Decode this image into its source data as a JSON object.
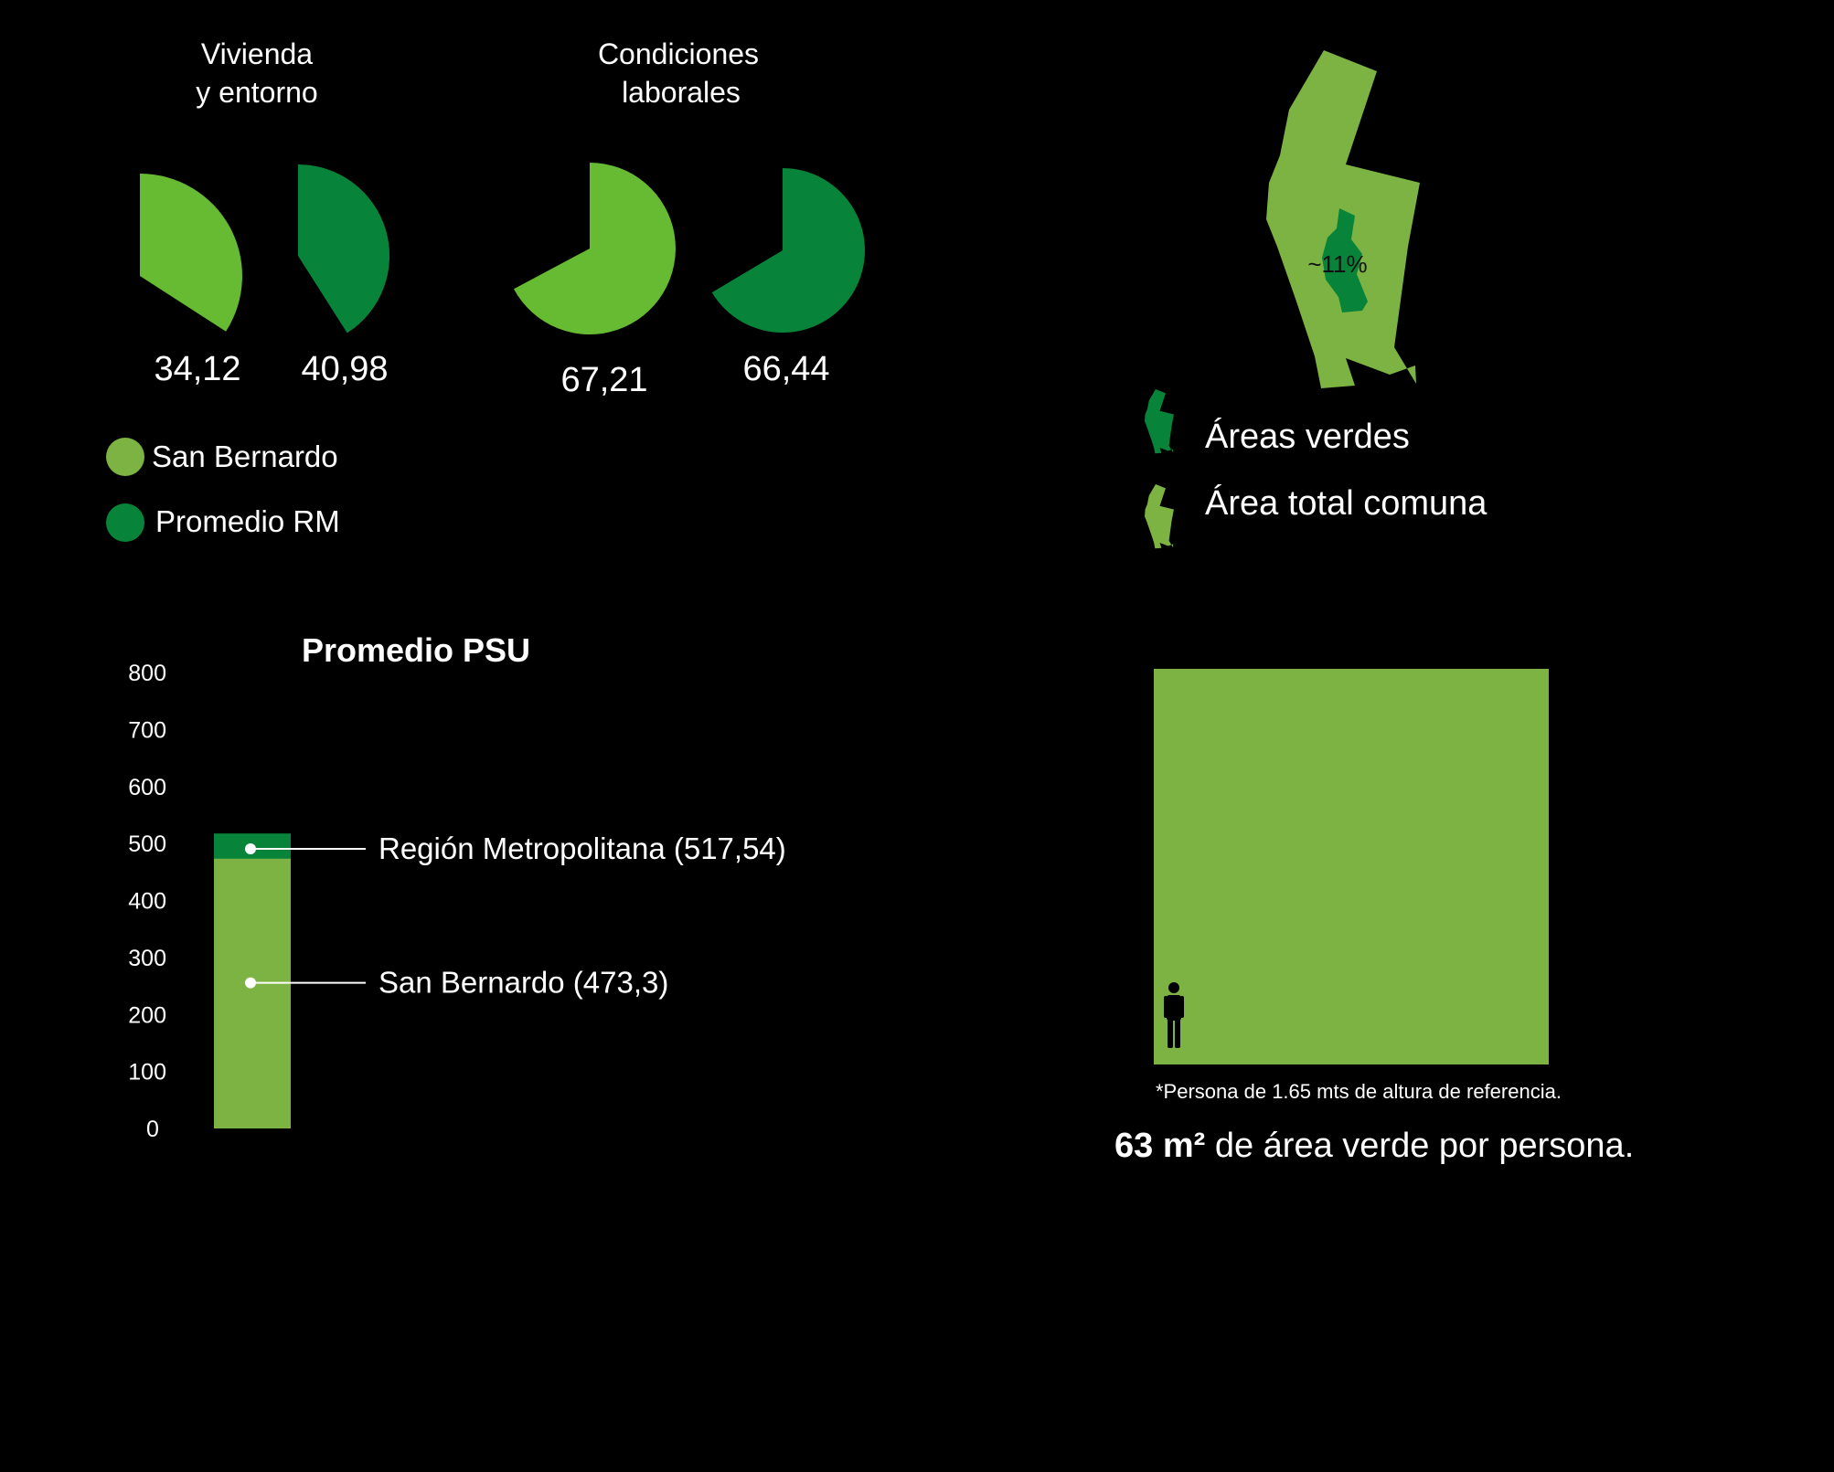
{
  "colors": {
    "background": "#000000",
    "san_bernardo": "#7cb342",
    "san_bernardo_pie": "#66bb33",
    "promedio_rm": "#07843a",
    "text": "#ffffff",
    "percent_text": "#111111"
  },
  "pie_groups": [
    {
      "title_lines": [
        "Vivienda",
        "y entorno"
      ],
      "pies": [
        {
          "series": "San Bernardo",
          "value": 34.12,
          "label": "34,12",
          "color": "#66bb33"
        },
        {
          "series": "Promedio RM",
          "value": 40.98,
          "label": "40,98",
          "color": "#07843a"
        }
      ]
    },
    {
      "title_lines": [
        "Condiciones",
        "laborales"
      ],
      "pies": [
        {
          "series": "San Bernardo",
          "value": 67.21,
          "label": "67,21",
          "color": "#66bb33"
        },
        {
          "series": "Promedio RM",
          "value": 66.44,
          "label": "66,44",
          "color": "#07843a"
        }
      ]
    }
  ],
  "legend": [
    {
      "label": "San Bernardo",
      "color": "#7cb342"
    },
    {
      "label": "Promedio RM",
      "color": "#07843a"
    }
  ],
  "map": {
    "percent_label": "~11%",
    "legend": [
      {
        "label": "Áreas verdes",
        "color": "#07843a",
        "icon": "map-icon"
      },
      {
        "label": "Área total comuna",
        "color": "#7cb342",
        "icon": "map-icon"
      }
    ]
  },
  "chart_data": {
    "type": "bar",
    "title": "Promedio PSU",
    "ylim": [
      0,
      800
    ],
    "yticks": [
      0,
      100,
      200,
      300,
      400,
      500,
      600,
      700,
      800
    ],
    "series": [
      {
        "name": "San Bernardo",
        "value": 473.3,
        "label": "San Bernardo (473,3)",
        "color": "#7cb342"
      },
      {
        "name": "Región Metropolitana",
        "value": 517.54,
        "label": "Región Metropolitana (517,54)",
        "color": "#07843a"
      }
    ]
  },
  "green_area": {
    "color": "#7cb342",
    "person_icon": "person-icon",
    "note": "*Persona de 1.65 mts de altura de referencia.",
    "stat_bold": "63 m²",
    "stat_rest": " de área verde por persona."
  }
}
